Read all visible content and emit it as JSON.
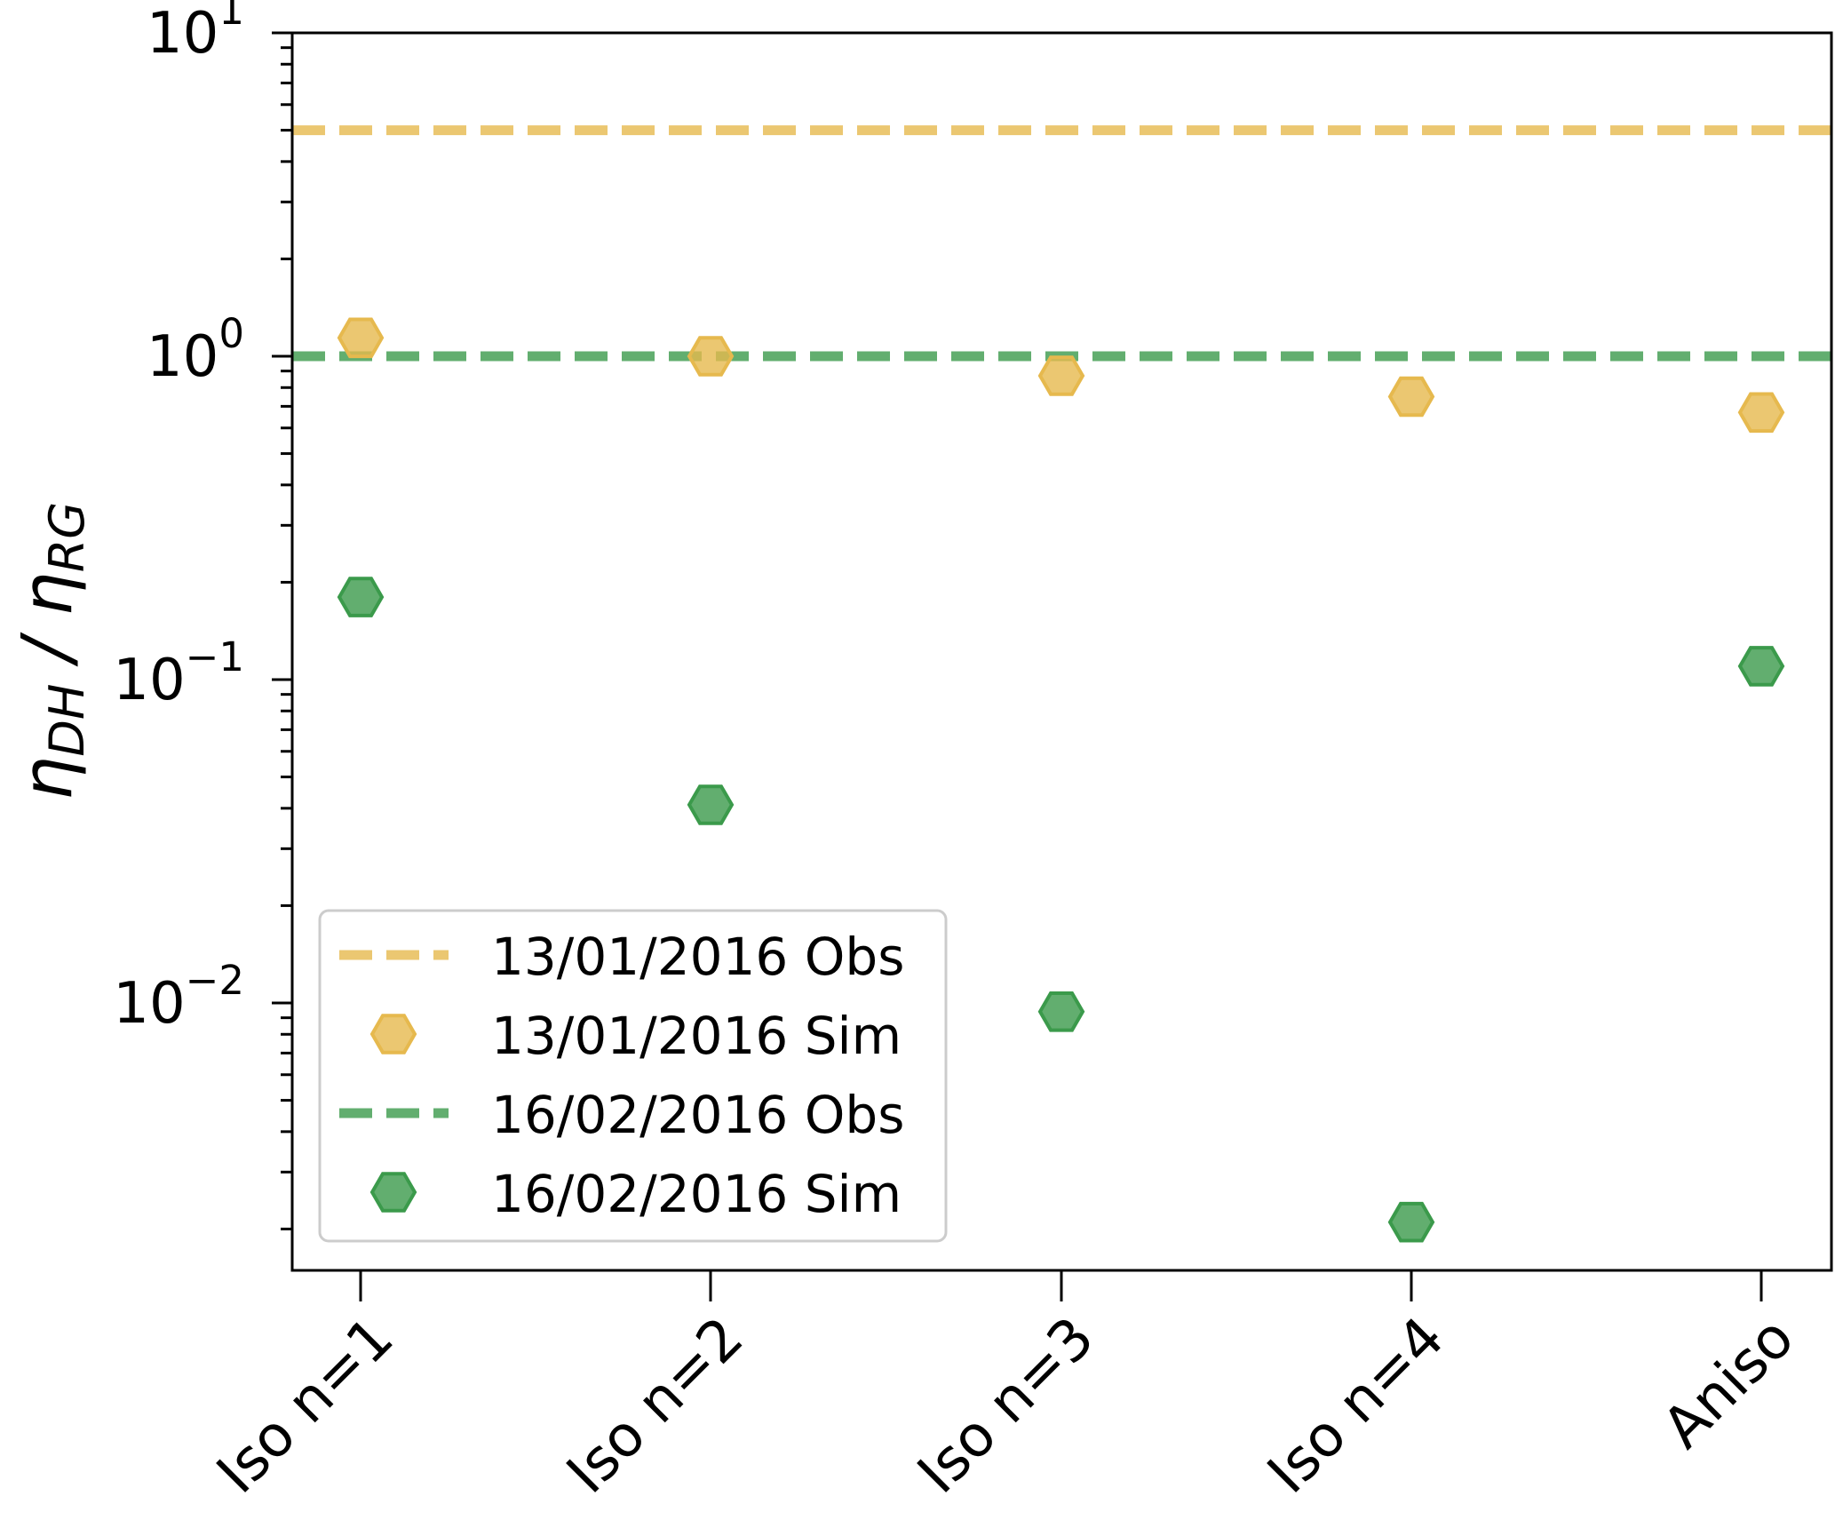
{
  "chart_data": {
    "type": "scatter",
    "categories": [
      "Iso n=1",
      "Iso n=2",
      "Iso n=3",
      "Iso n=4",
      "Aniso"
    ],
    "ylabel_main": "η",
    "ylabel_sub1": "DH",
    "ylabel_sep": " / ",
    "ylabel_sub2": "RG",
    "yscale": "log",
    "ylim": [
      0.0015,
      10
    ],
    "yticks": [
      {
        "base": "10",
        "exp": "1",
        "value": 10
      },
      {
        "base": "10",
        "exp": "0",
        "value": 1
      },
      {
        "base": "10",
        "exp": "−1",
        "value": 0.1
      },
      {
        "base": "10",
        "exp": "−2",
        "value": 0.01
      }
    ],
    "grid": false,
    "legend_position": "bottom-left",
    "series": [
      {
        "name": "13/01/2016 Obs",
        "kind": "hline",
        "value": 5.0,
        "color": "#e6b94e"
      },
      {
        "name": "13/01/2016 Sim",
        "kind": "marker",
        "values": [
          1.14,
          1.0,
          0.87,
          0.75,
          0.67
        ],
        "color": "#e6b94e"
      },
      {
        "name": "16/02/2016 Obs",
        "kind": "hline",
        "value": 1.0,
        "color": "#3b9a4b"
      },
      {
        "name": "16/02/2016 Sim",
        "kind": "marker",
        "values": [
          0.18,
          0.041,
          0.0094,
          0.0021,
          0.11
        ],
        "color": "#3b9a4b"
      }
    ]
  }
}
